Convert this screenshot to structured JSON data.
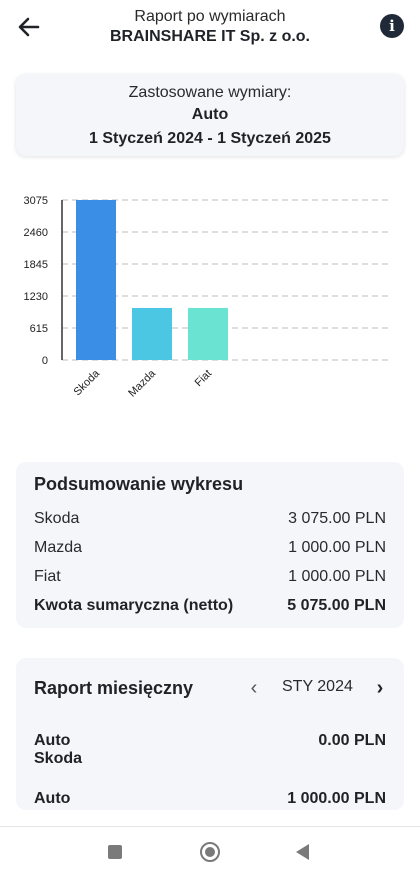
{
  "header": {
    "title": "Raport po wymiarach",
    "subtitle": "BRAINSHARE IT Sp. z o.o.",
    "back_icon": "arrow-left-icon",
    "info_icon": "info-icon",
    "info_glyph": "i"
  },
  "dimensions": {
    "label": "Zastosowane wymiary:",
    "value": "Auto",
    "period": "1 Styczeń 2024 - 1 Styczeń 2025"
  },
  "chart_data": {
    "type": "bar",
    "categories": [
      "Skoda",
      "Mazda",
      "Fiat"
    ],
    "values": [
      3075,
      1000,
      1000
    ],
    "colors": [
      "#3a8ee6",
      "#4bc6e3",
      "#6be3d2"
    ],
    "yticks": [
      0,
      615,
      1230,
      1845,
      2460,
      3075
    ],
    "ylim": [
      0,
      3075
    ],
    "grid": true
  },
  "summary": {
    "title": "Podsumowanie wykresu",
    "rows": [
      {
        "label": "Skoda",
        "value": "3 075.00 PLN"
      },
      {
        "label": "Mazda",
        "value": "1 000.00 PLN"
      },
      {
        "label": "Fiat",
        "value": "1 000.00 PLN"
      }
    ],
    "total": {
      "label": "Kwota sumaryczna (netto)",
      "value": "5 075.00 PLN"
    }
  },
  "monthly": {
    "title": "Raport miesięczny",
    "month": "STY 2024",
    "prev_glyph": "‹",
    "next_glyph": "›",
    "items": [
      {
        "line1": "Auto",
        "line2": "Skoda",
        "value": "0.00 PLN"
      },
      {
        "line1": "Auto",
        "line2": "",
        "value": "1 000.00 PLN"
      }
    ]
  },
  "navbar": {
    "recent_icon": "square-icon",
    "home_icon": "circle-icon",
    "back_icon": "triangle-back-icon"
  }
}
